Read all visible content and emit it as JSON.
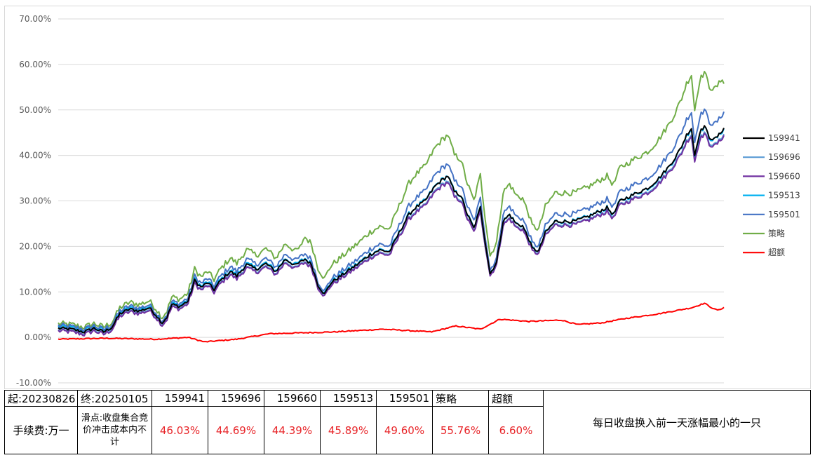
{
  "chart_data": {
    "type": "line",
    "y_axis": {
      "min": -0.1,
      "max": 0.7,
      "ticks": [
        -0.1,
        0.0,
        0.1,
        0.2,
        0.3,
        0.4,
        0.5,
        0.6,
        0.7
      ],
      "tick_labels": [
        "-10.00%",
        "0.00%",
        "10.00%",
        "20.00%",
        "30.00%",
        "40.00%",
        "50.00%",
        "60.00%",
        "70.00%"
      ],
      "format": "percent"
    },
    "x_axis": {
      "start": "20230826",
      "end": "20250105",
      "labels_shown": false
    },
    "grid": "horizontal",
    "legend_position": "right",
    "base_series": {
      "name": "159941",
      "keypoints": [
        [
          0,
          0.02
        ],
        [
          8,
          0.018
        ],
        [
          16,
          0.012
        ],
        [
          22,
          0.02
        ],
        [
          28,
          0.012
        ],
        [
          33,
          0.022
        ],
        [
          38,
          0.052
        ],
        [
          44,
          0.062
        ],
        [
          50,
          0.058
        ],
        [
          56,
          0.065
        ],
        [
          60,
          0.05
        ],
        [
          64,
          0.032
        ],
        [
          67,
          0.045
        ],
        [
          70,
          0.072
        ],
        [
          75,
          0.068
        ],
        [
          80,
          0.08
        ],
        [
          84,
          0.125
        ],
        [
          88,
          0.11
        ],
        [
          92,
          0.12
        ],
        [
          96,
          0.105
        ],
        [
          100,
          0.125
        ],
        [
          106,
          0.145
        ],
        [
          110,
          0.135
        ],
        [
          116,
          0.16
        ],
        [
          122,
          0.15
        ],
        [
          128,
          0.162
        ],
        [
          134,
          0.145
        ],
        [
          140,
          0.172
        ],
        [
          146,
          0.158
        ],
        [
          152,
          0.172
        ],
        [
          156,
          0.16
        ],
        [
          160,
          0.115
        ],
        [
          164,
          0.095
        ],
        [
          168,
          0.12
        ],
        [
          174,
          0.135
        ],
        [
          180,
          0.15
        ],
        [
          186,
          0.165
        ],
        [
          192,
          0.182
        ],
        [
          198,
          0.192
        ],
        [
          204,
          0.188
        ],
        [
          210,
          0.23
        ],
        [
          216,
          0.27
        ],
        [
          220,
          0.285
        ],
        [
          226,
          0.3
        ],
        [
          232,
          0.332
        ],
        [
          236,
          0.345
        ],
        [
          240,
          0.355
        ],
        [
          244,
          0.32
        ],
        [
          248,
          0.312
        ],
        [
          252,
          0.27
        ],
        [
          256,
          0.24
        ],
        [
          260,
          0.285
        ],
        [
          263,
          0.21
        ],
        [
          266,
          0.14
        ],
        [
          270,
          0.165
        ],
        [
          274,
          0.255
        ],
        [
          278,
          0.27
        ],
        [
          282,
          0.25
        ],
        [
          286,
          0.245
        ],
        [
          290,
          0.215
        ],
        [
          292,
          0.195
        ],
        [
          296,
          0.19
        ],
        [
          300,
          0.23
        ],
        [
          306,
          0.255
        ],
        [
          312,
          0.255
        ],
        [
          318,
          0.255
        ],
        [
          326,
          0.265
        ],
        [
          332,
          0.275
        ],
        [
          338,
          0.285
        ],
        [
          342,
          0.27
        ],
        [
          346,
          0.3
        ],
        [
          352,
          0.31
        ],
        [
          358,
          0.32
        ],
        [
          364,
          0.33
        ],
        [
          370,
          0.35
        ],
        [
          376,
          0.375
        ],
        [
          380,
          0.395
        ],
        [
          384,
          0.42
        ],
        [
          387,
          0.445
        ],
        [
          390,
          0.46
        ],
        [
          392,
          0.4
        ],
        [
          395,
          0.45
        ],
        [
          398,
          0.465
        ],
        [
          401,
          0.44
        ],
        [
          404,
          0.435
        ],
        [
          407,
          0.445
        ],
        [
          410,
          0.4603
        ]
      ]
    },
    "series": [
      {
        "name": "159941",
        "color": "#000000",
        "final": 0.4603
      },
      {
        "name": "159696",
        "color": "#5b9bd5",
        "final": 0.4469
      },
      {
        "name": "159660",
        "color": "#7030a0",
        "final": 0.4439
      },
      {
        "name": "159513",
        "color": "#00b0f0",
        "final": 0.4589
      },
      {
        "name": "159501",
        "color": "#4472c4",
        "final": 0.496
      },
      {
        "name": "策略",
        "color": "#70ad47",
        "final": 0.5576
      },
      {
        "name": "超额",
        "color": "#ff0000",
        "final": 0.066
      }
    ]
  },
  "table": {
    "start_label": "起:20230826",
    "end_label": "终:20250105",
    "fee_label": "手续费:万一",
    "slippage_note": "滑点:收盘集合竞价冲击成本内不计",
    "headers": [
      "159941",
      "159696",
      "159660",
      "159513",
      "159501",
      "策略",
      "超额"
    ],
    "values": [
      "46.03%",
      "44.69%",
      "44.39%",
      "45.89%",
      "49.60%",
      "55.76%",
      "6.60%"
    ],
    "description": "每日收盘换入前一天涨幅最小的一只"
  },
  "colors": {
    "value_text": "#e8262a",
    "gridline": "#d9d9d9"
  }
}
